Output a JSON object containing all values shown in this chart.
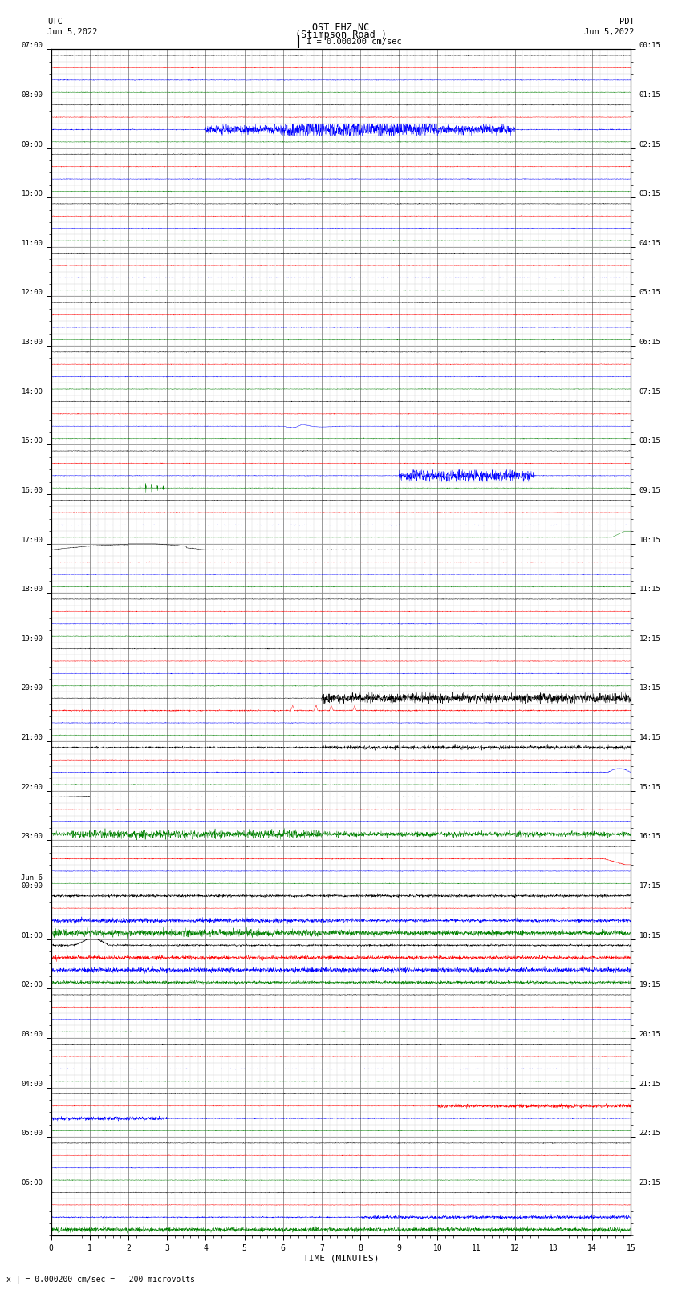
{
  "title_line1": "OST EHZ NC",
  "title_line2": "(Stimpson Road )",
  "scale_label": "I = 0.000200 cm/sec",
  "left_label_1": "UTC",
  "left_label_2": "Jun 5,2022",
  "right_label_1": "PDT",
  "right_label_2": "Jun 5,2022",
  "bottom_label": "x | = 0.000200 cm/sec =   200 microvolts",
  "xlabel": "TIME (MINUTES)",
  "left_times": [
    "07:00",
    "08:00",
    "09:00",
    "10:00",
    "11:00",
    "12:00",
    "13:00",
    "14:00",
    "15:00",
    "16:00",
    "17:00",
    "18:00",
    "19:00",
    "20:00",
    "21:00",
    "22:00",
    "23:00",
    "Jun 6\n00:00",
    "01:00",
    "02:00",
    "03:00",
    "04:00",
    "05:00",
    "06:00"
  ],
  "right_times": [
    "00:15",
    "01:15",
    "02:15",
    "03:15",
    "04:15",
    "05:15",
    "06:15",
    "07:15",
    "08:15",
    "09:15",
    "10:15",
    "11:15",
    "12:15",
    "13:15",
    "14:15",
    "15:15",
    "16:15",
    "17:15",
    "18:15",
    "19:15",
    "20:15",
    "21:15",
    "22:15",
    "23:15"
  ],
  "num_rows": 24,
  "traces_per_row": 4,
  "minutes_per_row": 15,
  "bg_color": "#ffffff",
  "grid_color": "#aaaaaa",
  "trace_colors": [
    "black",
    "red",
    "blue",
    "green"
  ],
  "figsize": [
    8.5,
    16.13
  ],
  "dpi": 100
}
